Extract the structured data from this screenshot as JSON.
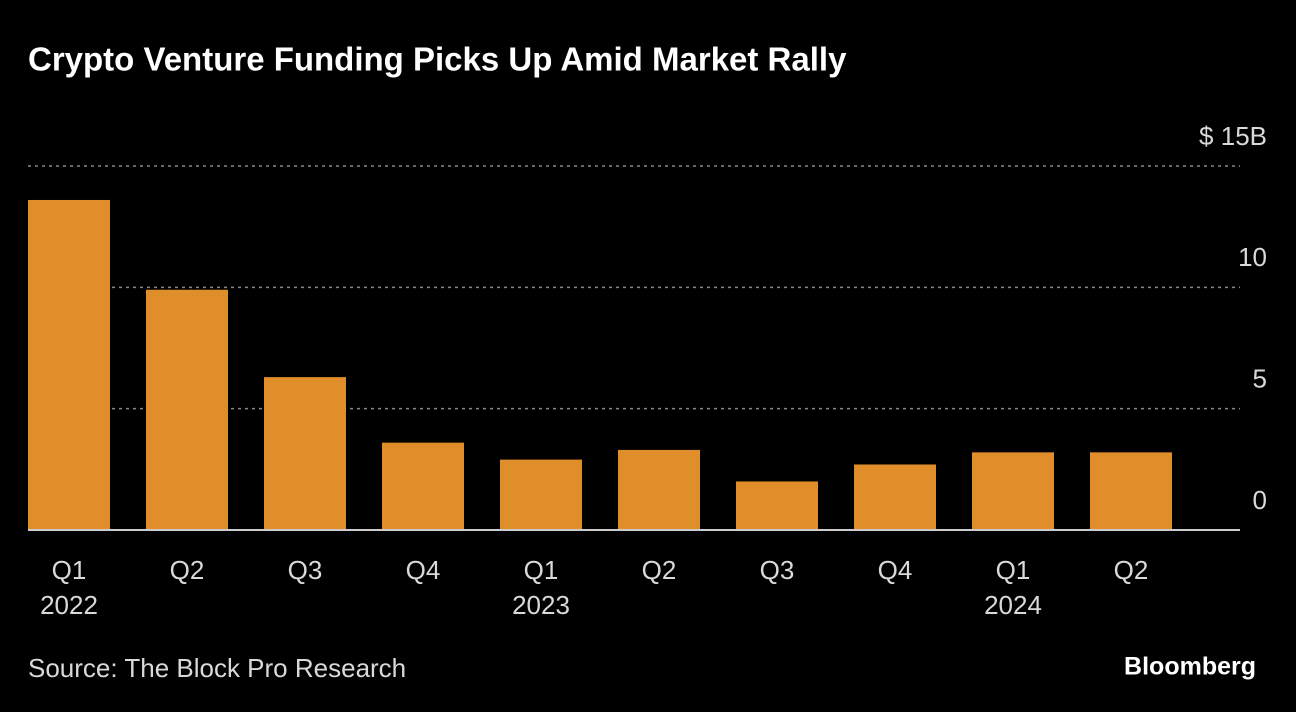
{
  "chart_data": {
    "type": "bar",
    "title": "Crypto Venture Funding Picks Up Amid Market Rally",
    "categories": [
      "Q1",
      "Q2",
      "Q3",
      "Q4",
      "Q1",
      "Q2",
      "Q3",
      "Q4",
      "Q1",
      "Q2"
    ],
    "category_years": [
      "2022",
      null,
      null,
      null,
      "2023",
      null,
      null,
      null,
      "2024",
      null
    ],
    "values": [
      13.6,
      9.9,
      6.3,
      3.6,
      2.9,
      3.3,
      2.0,
      2.7,
      3.2,
      3.2
    ],
    "color": "#e08e2a",
    "ylim": [
      0,
      15
    ],
    "yticks": [
      0,
      5,
      10,
      {
        "value": 15,
        "label": "$ 15B"
      }
    ],
    "grid": true,
    "source": "Source: The Block Pro Research",
    "brand": "Bloomberg"
  }
}
